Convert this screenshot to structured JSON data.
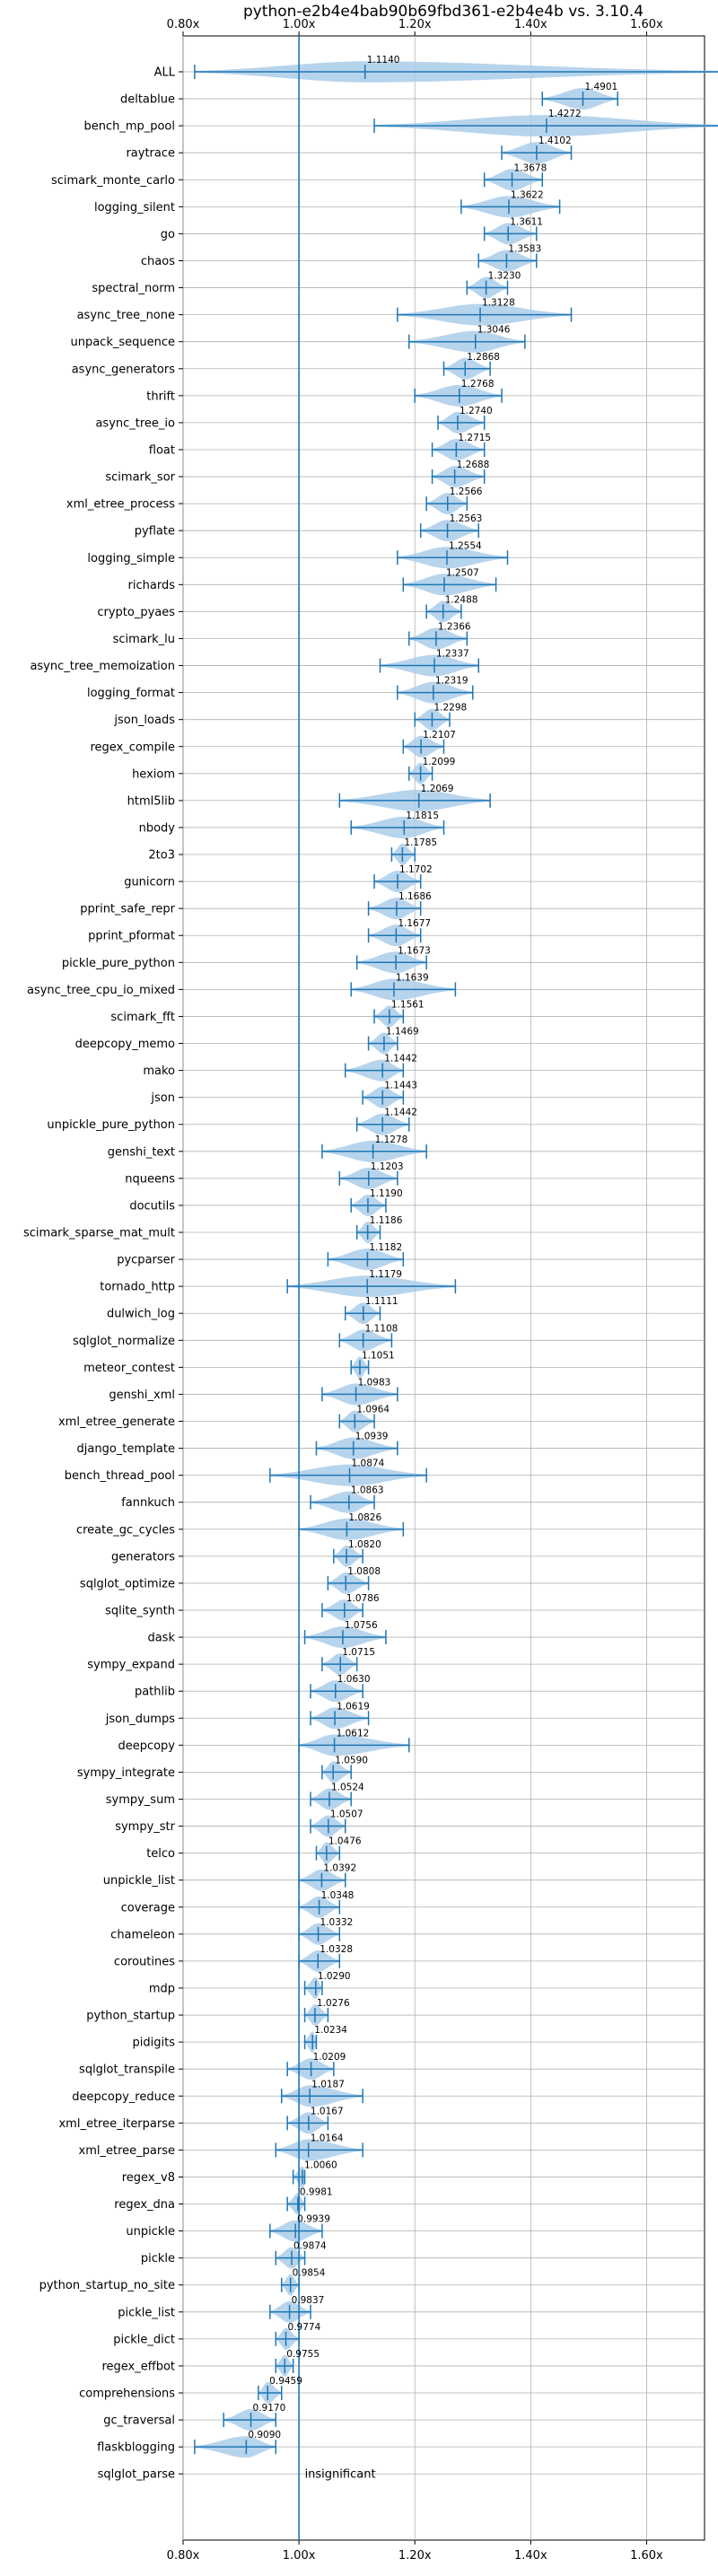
{
  "chart_data": {
    "type": "violin",
    "title": "python-e2b4e4bab90b69fbd361-e2b4e4b vs. 3.10.4",
    "orientation": "horizontal",
    "xlim": [
      0.8,
      1.7
    ],
    "xticks": [
      0.8,
      1.0,
      1.2,
      1.4,
      1.6
    ],
    "xtick_labels": [
      "0.80x",
      "1.00x",
      "1.20x",
      "1.40x",
      "1.60x"
    ],
    "reference_line": 1.0,
    "grid": true,
    "colors": {
      "violin": "#aaccea",
      "whisker": "#1f77b4",
      "line": "#1f77b4",
      "grid": "#b0b0b0"
    },
    "benchmarks": [
      {
        "name": "ALL",
        "median": 1.114,
        "min": 0.82,
        "max": 1.73,
        "label": "1.1140"
      },
      {
        "name": "deltablue",
        "median": 1.4901,
        "min": 1.42,
        "max": 1.55,
        "label": "1.4901"
      },
      {
        "name": "bench_mp_pool",
        "median": 1.4272,
        "min": 1.13,
        "max": 1.73,
        "label": "1.4272"
      },
      {
        "name": "raytrace",
        "median": 1.4102,
        "min": 1.35,
        "max": 1.47,
        "label": "1.4102"
      },
      {
        "name": "scimark_monte_carlo",
        "median": 1.3678,
        "min": 1.32,
        "max": 1.42,
        "label": "1.3678"
      },
      {
        "name": "logging_silent",
        "median": 1.3622,
        "min": 1.28,
        "max": 1.45,
        "label": "1.3622"
      },
      {
        "name": "go",
        "median": 1.3611,
        "min": 1.32,
        "max": 1.41,
        "label": "1.3611"
      },
      {
        "name": "chaos",
        "median": 1.3583,
        "min": 1.31,
        "max": 1.41,
        "label": "1.3583"
      },
      {
        "name": "spectral_norm",
        "median": 1.323,
        "min": 1.29,
        "max": 1.36,
        "label": "1.3230"
      },
      {
        "name": "async_tree_none",
        "median": 1.3128,
        "min": 1.17,
        "max": 1.47,
        "label": "1.3128"
      },
      {
        "name": "unpack_sequence",
        "median": 1.3046,
        "min": 1.19,
        "max": 1.39,
        "label": "1.3046"
      },
      {
        "name": "async_generators",
        "median": 1.2868,
        "min": 1.25,
        "max": 1.33,
        "label": "1.2868"
      },
      {
        "name": "thrift",
        "median": 1.2768,
        "min": 1.2,
        "max": 1.35,
        "label": "1.2768"
      },
      {
        "name": "async_tree_io",
        "median": 1.274,
        "min": 1.24,
        "max": 1.32,
        "label": "1.2740"
      },
      {
        "name": "float",
        "median": 1.2715,
        "min": 1.23,
        "max": 1.32,
        "label": "1.2715"
      },
      {
        "name": "scimark_sor",
        "median": 1.2688,
        "min": 1.23,
        "max": 1.32,
        "label": "1.2688"
      },
      {
        "name": "xml_etree_process",
        "median": 1.2566,
        "min": 1.22,
        "max": 1.29,
        "label": "1.2566"
      },
      {
        "name": "pyflate",
        "median": 1.2563,
        "min": 1.21,
        "max": 1.31,
        "label": "1.2563"
      },
      {
        "name": "logging_simple",
        "median": 1.2554,
        "min": 1.17,
        "max": 1.36,
        "label": "1.2554"
      },
      {
        "name": "richards",
        "median": 1.2507,
        "min": 1.18,
        "max": 1.34,
        "label": "1.2507"
      },
      {
        "name": "crypto_pyaes",
        "median": 1.2488,
        "min": 1.22,
        "max": 1.28,
        "label": "1.2488"
      },
      {
        "name": "scimark_lu",
        "median": 1.2366,
        "min": 1.19,
        "max": 1.29,
        "label": "1.2366"
      },
      {
        "name": "async_tree_memoization",
        "median": 1.2337,
        "min": 1.14,
        "max": 1.31,
        "label": "1.2337"
      },
      {
        "name": "logging_format",
        "median": 1.2319,
        "min": 1.17,
        "max": 1.3,
        "label": "1.2319"
      },
      {
        "name": "json_loads",
        "median": 1.2298,
        "min": 1.2,
        "max": 1.26,
        "label": "1.2298"
      },
      {
        "name": "regex_compile",
        "median": 1.2107,
        "min": 1.18,
        "max": 1.25,
        "label": "1.2107"
      },
      {
        "name": "hexiom",
        "median": 1.2099,
        "min": 1.19,
        "max": 1.23,
        "label": "1.2099"
      },
      {
        "name": "html5lib",
        "median": 1.2069,
        "min": 1.07,
        "max": 1.33,
        "label": "1.2069"
      },
      {
        "name": "nbody",
        "median": 1.1815,
        "min": 1.09,
        "max": 1.25,
        "label": "1.1815"
      },
      {
        "name": "2to3",
        "median": 1.1785,
        "min": 1.16,
        "max": 1.2,
        "label": "1.1785"
      },
      {
        "name": "gunicorn",
        "median": 1.1702,
        "min": 1.13,
        "max": 1.21,
        "label": "1.1702"
      },
      {
        "name": "pprint_safe_repr",
        "median": 1.1686,
        "min": 1.12,
        "max": 1.21,
        "label": "1.1686"
      },
      {
        "name": "pprint_pformat",
        "median": 1.1677,
        "min": 1.12,
        "max": 1.21,
        "label": "1.1677"
      },
      {
        "name": "pickle_pure_python",
        "median": 1.1673,
        "min": 1.1,
        "max": 1.22,
        "label": "1.1673"
      },
      {
        "name": "async_tree_cpu_io_mixed",
        "median": 1.1639,
        "min": 1.09,
        "max": 1.27,
        "label": "1.1639"
      },
      {
        "name": "scimark_fft",
        "median": 1.1561,
        "min": 1.13,
        "max": 1.18,
        "label": "1.1561"
      },
      {
        "name": "deepcopy_memo",
        "median": 1.1469,
        "min": 1.12,
        "max": 1.17,
        "label": "1.1469"
      },
      {
        "name": "mako",
        "median": 1.1442,
        "min": 1.08,
        "max": 1.18,
        "label": "1.1442"
      },
      {
        "name": "json",
        "median": 1.1443,
        "min": 1.11,
        "max": 1.18,
        "label": "1.1443"
      },
      {
        "name": "unpickle_pure_python",
        "median": 1.1442,
        "min": 1.1,
        "max": 1.19,
        "label": "1.1442"
      },
      {
        "name": "genshi_text",
        "median": 1.1278,
        "min": 1.04,
        "max": 1.22,
        "label": "1.1278"
      },
      {
        "name": "nqueens",
        "median": 1.1203,
        "min": 1.07,
        "max": 1.17,
        "label": "1.1203"
      },
      {
        "name": "docutils",
        "median": 1.119,
        "min": 1.09,
        "max": 1.15,
        "label": "1.1190"
      },
      {
        "name": "scimark_sparse_mat_mult",
        "median": 1.1186,
        "min": 1.1,
        "max": 1.14,
        "label": "1.1186"
      },
      {
        "name": "pycparser",
        "median": 1.1182,
        "min": 1.05,
        "max": 1.18,
        "label": "1.1182"
      },
      {
        "name": "tornado_http",
        "median": 1.1179,
        "min": 0.98,
        "max": 1.27,
        "label": "1.1179"
      },
      {
        "name": "dulwich_log",
        "median": 1.1111,
        "min": 1.08,
        "max": 1.14,
        "label": "1.1111"
      },
      {
        "name": "sqlglot_normalize",
        "median": 1.1108,
        "min": 1.07,
        "max": 1.16,
        "label": "1.1108"
      },
      {
        "name": "meteor_contest",
        "median": 1.1051,
        "min": 1.09,
        "max": 1.12,
        "label": "1.1051"
      },
      {
        "name": "genshi_xml",
        "median": 1.0983,
        "min": 1.04,
        "max": 1.17,
        "label": "1.0983"
      },
      {
        "name": "xml_etree_generate",
        "median": 1.0964,
        "min": 1.07,
        "max": 1.13,
        "label": "1.0964"
      },
      {
        "name": "django_template",
        "median": 1.0939,
        "min": 1.03,
        "max": 1.17,
        "label": "1.0939"
      },
      {
        "name": "bench_thread_pool",
        "median": 1.0874,
        "min": 0.95,
        "max": 1.22,
        "label": "1.0874"
      },
      {
        "name": "fannkuch",
        "median": 1.0863,
        "min": 1.02,
        "max": 1.13,
        "label": "1.0863"
      },
      {
        "name": "create_gc_cycles",
        "median": 1.0826,
        "min": 1.0,
        "max": 1.18,
        "label": "1.0826"
      },
      {
        "name": "generators",
        "median": 1.082,
        "min": 1.06,
        "max": 1.11,
        "label": "1.0820"
      },
      {
        "name": "sqlglot_optimize",
        "median": 1.0808,
        "min": 1.05,
        "max": 1.12,
        "label": "1.0808"
      },
      {
        "name": "sqlite_synth",
        "median": 1.0786,
        "min": 1.04,
        "max": 1.11,
        "label": "1.0786"
      },
      {
        "name": "dask",
        "median": 1.0756,
        "min": 1.01,
        "max": 1.15,
        "label": "1.0756"
      },
      {
        "name": "sympy_expand",
        "median": 1.0715,
        "min": 1.04,
        "max": 1.1,
        "label": "1.0715"
      },
      {
        "name": "pathlib",
        "median": 1.063,
        "min": 1.02,
        "max": 1.11,
        "label": "1.0630"
      },
      {
        "name": "json_dumps",
        "median": 1.0619,
        "min": 1.02,
        "max": 1.12,
        "label": "1.0619"
      },
      {
        "name": "deepcopy",
        "median": 1.0612,
        "min": 1.0,
        "max": 1.19,
        "label": "1.0612"
      },
      {
        "name": "sympy_integrate",
        "median": 1.059,
        "min": 1.04,
        "max": 1.09,
        "label": "1.0590"
      },
      {
        "name": "sympy_sum",
        "median": 1.0524,
        "min": 1.02,
        "max": 1.09,
        "label": "1.0524"
      },
      {
        "name": "sympy_str",
        "median": 1.0507,
        "min": 1.02,
        "max": 1.08,
        "label": "1.0507"
      },
      {
        "name": "telco",
        "median": 1.0476,
        "min": 1.03,
        "max": 1.07,
        "label": "1.0476"
      },
      {
        "name": "unpickle_list",
        "median": 1.0392,
        "min": 1.0,
        "max": 1.08,
        "label": "1.0392"
      },
      {
        "name": "coverage",
        "median": 1.0348,
        "min": 1.0,
        "max": 1.07,
        "label": "1.0348"
      },
      {
        "name": "chameleon",
        "median": 1.0332,
        "min": 1.0,
        "max": 1.07,
        "label": "1.0332"
      },
      {
        "name": "coroutines",
        "median": 1.0328,
        "min": 1.0,
        "max": 1.07,
        "label": "1.0328"
      },
      {
        "name": "mdp",
        "median": 1.029,
        "min": 1.01,
        "max": 1.04,
        "label": "1.0290"
      },
      {
        "name": "python_startup",
        "median": 1.0276,
        "min": 1.01,
        "max": 1.05,
        "label": "1.0276"
      },
      {
        "name": "pidigits",
        "median": 1.0234,
        "min": 1.01,
        "max": 1.03,
        "label": "1.0234"
      },
      {
        "name": "sqlglot_transpile",
        "median": 1.0209,
        "min": 0.98,
        "max": 1.06,
        "label": "1.0209"
      },
      {
        "name": "deepcopy_reduce",
        "median": 1.0187,
        "min": 0.97,
        "max": 1.11,
        "label": "1.0187"
      },
      {
        "name": "xml_etree_iterparse",
        "median": 1.0167,
        "min": 0.98,
        "max": 1.05,
        "label": "1.0167"
      },
      {
        "name": "xml_etree_parse",
        "median": 1.0164,
        "min": 0.96,
        "max": 1.11,
        "label": "1.0164"
      },
      {
        "name": "regex_v8",
        "median": 1.006,
        "min": 0.99,
        "max": 1.01,
        "label": "1.0060"
      },
      {
        "name": "regex_dna",
        "median": 0.9981,
        "min": 0.98,
        "max": 1.01,
        "label": "0.9981"
      },
      {
        "name": "unpickle",
        "median": 0.9939,
        "min": 0.95,
        "max": 1.04,
        "label": "0.9939"
      },
      {
        "name": "pickle",
        "median": 0.9874,
        "min": 0.96,
        "max": 1.01,
        "label": "0.9874"
      },
      {
        "name": "python_startup_no_site",
        "median": 0.9854,
        "min": 0.97,
        "max": 1.0,
        "label": "0.9854"
      },
      {
        "name": "pickle_list",
        "median": 0.9837,
        "min": 0.95,
        "max": 1.02,
        "label": "0.9837"
      },
      {
        "name": "pickle_dict",
        "median": 0.9774,
        "min": 0.96,
        "max": 1.0,
        "label": "0.9774"
      },
      {
        "name": "regex_effbot",
        "median": 0.9755,
        "min": 0.96,
        "max": 0.99,
        "label": "0.9755"
      },
      {
        "name": "comprehensions",
        "median": 0.9459,
        "min": 0.93,
        "max": 0.97,
        "label": "0.9459"
      },
      {
        "name": "gc_traversal",
        "median": 0.917,
        "min": 0.87,
        "max": 0.96,
        "label": "0.9170"
      },
      {
        "name": "flaskblogging",
        "median": 0.909,
        "min": 0.82,
        "max": 0.96,
        "label": "0.9090"
      },
      {
        "name": "sqlglot_parse",
        "median": null,
        "min": null,
        "max": null,
        "label": ""
      }
    ],
    "annotations": [
      {
        "row": "sqlglot_parse",
        "text": "insignificant",
        "x": 1.01
      }
    ]
  }
}
